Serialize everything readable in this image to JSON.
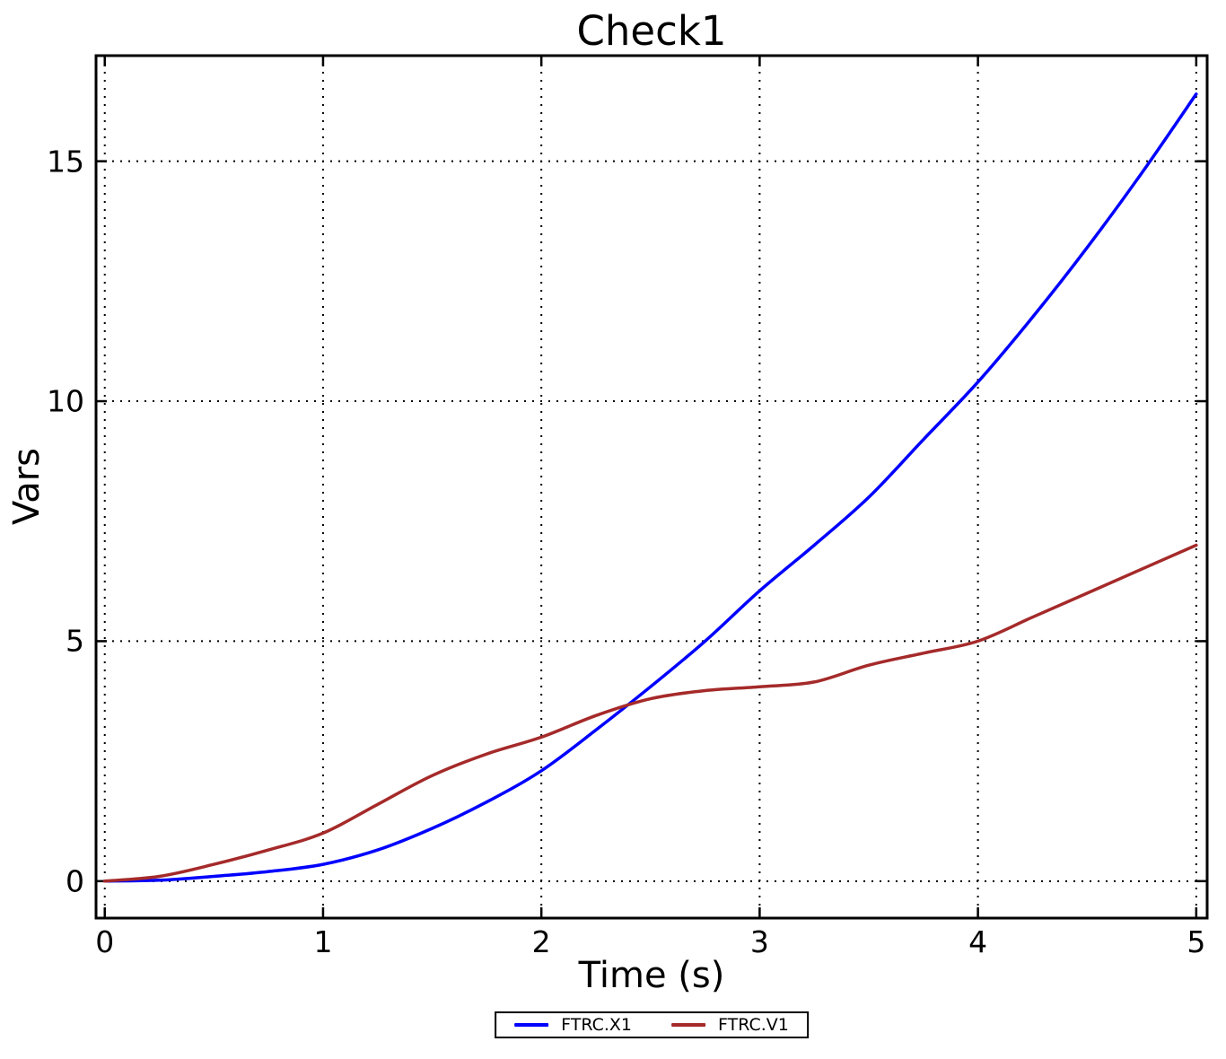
{
  "figure": {
    "background": "#ffffff",
    "frame_color": "#000000",
    "grid_color": "#000000"
  },
  "chart_data": {
    "type": "line",
    "title": "Check1",
    "xlabel": "Time (s)",
    "ylabel": "Vars",
    "x_ticks": [
      0,
      1,
      2,
      3,
      4,
      5
    ],
    "y_ticks": [
      0,
      5,
      10,
      15
    ],
    "xlim": [
      -0.04,
      5.05
    ],
    "ylim": [
      -0.77,
      17.2
    ],
    "grid": true,
    "grid_style": "dotted",
    "legend_position": "bottom-center-outside",
    "x": [
      0,
      0.25,
      0.5,
      0.75,
      1,
      1.25,
      1.5,
      1.75,
      2,
      2.25,
      2.5,
      2.75,
      3,
      3.25,
      3.5,
      3.75,
      4,
      4.25,
      4.5,
      4.75,
      5
    ],
    "series": [
      {
        "name": "FTRC.X1",
        "color": "#0000ff",
        "values": [
          0,
          0.02,
          0.1,
          0.2,
          0.35,
          0.65,
          1.1,
          1.65,
          2.3,
          3.15,
          4.05,
          5.0,
          6.05,
          7.0,
          8.0,
          9.2,
          10.4,
          11.75,
          13.2,
          14.75,
          16.4
        ]
      },
      {
        "name": "FTRC.V1",
        "color": "#a52a2a",
        "values": [
          0,
          0.1,
          0.35,
          0.65,
          1.0,
          1.6,
          2.2,
          2.65,
          3.0,
          3.45,
          3.8,
          3.97,
          4.05,
          4.15,
          4.5,
          4.75,
          5.0,
          5.5,
          6.0,
          6.5,
          7.0
        ]
      }
    ]
  }
}
